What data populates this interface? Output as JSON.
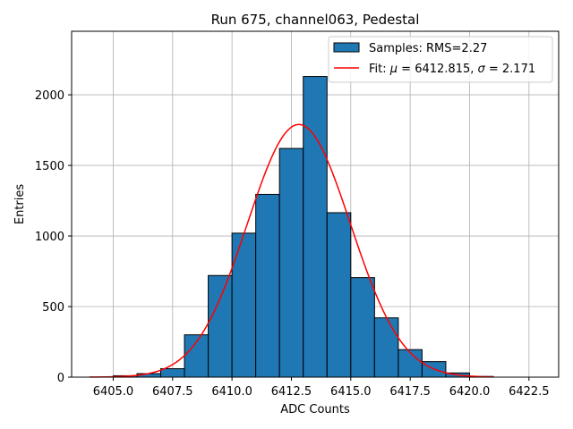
{
  "chart_data": {
    "type": "bar",
    "title": "Run 675, channel063, Pedestal",
    "xlabel": "ADC Counts",
    "ylabel": "Entries",
    "xlim": [
      6403.25,
      6423.75
    ],
    "ylim": [
      0,
      2450
    ],
    "xticks": [
      6405.0,
      6407.5,
      6410.0,
      6412.5,
      6415.0,
      6417.5,
      6420.0,
      6422.5
    ],
    "xtick_labels": [
      "6405.0",
      "6407.5",
      "6410.0",
      "6412.5",
      "6415.0",
      "6417.5",
      "6420.0",
      "6422.5"
    ],
    "yticks": [
      0,
      500,
      1000,
      1500,
      2000
    ],
    "ytick_labels": [
      "0",
      "500",
      "1000",
      "1500",
      "2000"
    ],
    "grid": true,
    "legend_position": "top-right",
    "histogram": {
      "name": "Samples: RMS=2.27",
      "color": "#1f77b4",
      "edge_color": "#000000",
      "bin_width": 1,
      "bin_left_edges": [
        6405,
        6406,
        6407,
        6408,
        6409,
        6410,
        6411,
        6412,
        6413,
        6414,
        6415,
        6416,
        6417,
        6418,
        6419,
        6420
      ],
      "counts": [
        10,
        25,
        60,
        300,
        720,
        1020,
        1295,
        1620,
        2130,
        1165,
        705,
        420,
        195,
        110,
        30,
        5
      ]
    },
    "fit": {
      "name_prefix": "Fit: ",
      "name_mu_symbol": "μ",
      "name_mid": " = 6412.815, ",
      "name_sigma_symbol": "σ",
      "name_end": " = 2.171",
      "color": "#ff0000",
      "mu": 6412.815,
      "sigma": 2.171,
      "amplitude": 1790,
      "x_range": [
        6404,
        6421
      ]
    }
  }
}
